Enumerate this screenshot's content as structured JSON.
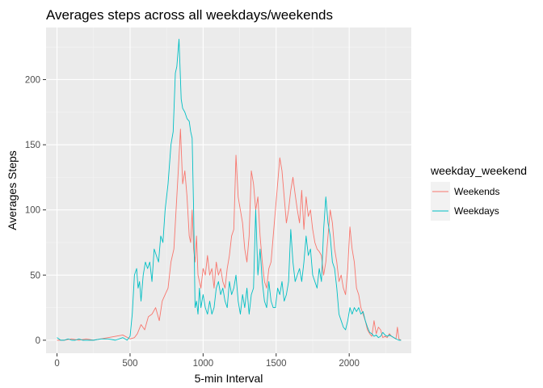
{
  "chart_data": {
    "type": "line",
    "title": "Averages steps across all weekdays/weekends",
    "xlabel": "5-min Interval",
    "ylabel": "Averages Steps",
    "xlim": [
      -75,
      2425
    ],
    "ylim": [
      -10,
      240
    ],
    "x_ticks": [
      0,
      500,
      1000,
      1500,
      2000
    ],
    "y_ticks": [
      0,
      50,
      100,
      150,
      200
    ],
    "grid": true,
    "legend": {
      "title": "weekday_weekend",
      "position": "right",
      "entries": [
        "Weekends",
        "Weekdays"
      ]
    },
    "series": [
      {
        "name": "Weekends",
        "color": "#F8766D",
        "points": [
          [
            0,
            0
          ],
          [
            50,
            0
          ],
          [
            100,
            1
          ],
          [
            150,
            0
          ],
          [
            200,
            1
          ],
          [
            250,
            0
          ],
          [
            300,
            1
          ],
          [
            350,
            2
          ],
          [
            400,
            3
          ],
          [
            450,
            4
          ],
          [
            500,
            1
          ],
          [
            530,
            2
          ],
          [
            550,
            5
          ],
          [
            575,
            12
          ],
          [
            600,
            8
          ],
          [
            625,
            18
          ],
          [
            650,
            20
          ],
          [
            675,
            25
          ],
          [
            700,
            15
          ],
          [
            720,
            30
          ],
          [
            740,
            35
          ],
          [
            760,
            40
          ],
          [
            780,
            60
          ],
          [
            800,
            70
          ],
          [
            815,
            100
          ],
          [
            830,
            130
          ],
          [
            845,
            162
          ],
          [
            860,
            120
          ],
          [
            875,
            130
          ],
          [
            890,
            110
          ],
          [
            905,
            80
          ],
          [
            915,
            75
          ],
          [
            925,
            100
          ],
          [
            935,
            70
          ],
          [
            945,
            60
          ],
          [
            955,
            80
          ],
          [
            965,
            50
          ],
          [
            975,
            45
          ],
          [
            985,
            40
          ],
          [
            1000,
            55
          ],
          [
            1015,
            50
          ],
          [
            1030,
            65
          ],
          [
            1045,
            50
          ],
          [
            1060,
            55
          ],
          [
            1075,
            40
          ],
          [
            1090,
            60
          ],
          [
            1105,
            50
          ],
          [
            1120,
            55
          ],
          [
            1135,
            45
          ],
          [
            1150,
            40
          ],
          [
            1165,
            55
          ],
          [
            1180,
            65
          ],
          [
            1195,
            80
          ],
          [
            1210,
            85
          ],
          [
            1225,
            142
          ],
          [
            1240,
            110
          ],
          [
            1255,
            100
          ],
          [
            1270,
            90
          ],
          [
            1285,
            70
          ],
          [
            1300,
            60
          ],
          [
            1315,
            80
          ],
          [
            1330,
            130
          ],
          [
            1345,
            120
          ],
          [
            1360,
            100
          ],
          [
            1375,
            110
          ],
          [
            1390,
            80
          ],
          [
            1405,
            60
          ],
          [
            1420,
            45
          ],
          [
            1435,
            40
          ],
          [
            1450,
            55
          ],
          [
            1465,
            60
          ],
          [
            1480,
            80
          ],
          [
            1495,
            100
          ],
          [
            1510,
            120
          ],
          [
            1525,
            140
          ],
          [
            1540,
            130
          ],
          [
            1555,
            110
          ],
          [
            1570,
            90
          ],
          [
            1585,
            100
          ],
          [
            1600,
            115
          ],
          [
            1615,
            125
          ],
          [
            1630,
            112
          ],
          [
            1645,
            100
          ],
          [
            1660,
            90
          ],
          [
            1675,
            115
          ],
          [
            1690,
            85
          ],
          [
            1705,
            110
          ],
          [
            1720,
            95
          ],
          [
            1735,
            100
          ],
          [
            1750,
            85
          ],
          [
            1765,
            75
          ],
          [
            1780,
            70
          ],
          [
            1795,
            68
          ],
          [
            1810,
            65
          ],
          [
            1825,
            50
          ],
          [
            1840,
            60
          ],
          [
            1855,
            80
          ],
          [
            1870,
            100
          ],
          [
            1885,
            90
          ],
          [
            1900,
            70
          ],
          [
            1915,
            60
          ],
          [
            1930,
            45
          ],
          [
            1945,
            50
          ],
          [
            1960,
            40
          ],
          [
            1975,
            35
          ],
          [
            1990,
            55
          ],
          [
            2005,
            87
          ],
          [
            2020,
            70
          ],
          [
            2035,
            60
          ],
          [
            2050,
            40
          ],
          [
            2065,
            35
          ],
          [
            2080,
            25
          ],
          [
            2095,
            20
          ],
          [
            2110,
            15
          ],
          [
            2125,
            8
          ],
          [
            2140,
            5
          ],
          [
            2155,
            3
          ],
          [
            2170,
            15
          ],
          [
            2185,
            5
          ],
          [
            2200,
            10
          ],
          [
            2215,
            8
          ],
          [
            2230,
            2
          ],
          [
            2245,
            3
          ],
          [
            2260,
            2
          ],
          [
            2275,
            5
          ],
          [
            2290,
            3
          ],
          [
            2305,
            2
          ],
          [
            2320,
            1
          ],
          [
            2330,
            10
          ],
          [
            2340,
            1
          ],
          [
            2355,
            0
          ]
        ]
      },
      {
        "name": "Weekdays",
        "color": "#00BFC4",
        "points": [
          [
            0,
            2
          ],
          [
            25,
            0
          ],
          [
            50,
            0
          ],
          [
            75,
            1
          ],
          [
            100,
            0
          ],
          [
            125,
            0
          ],
          [
            150,
            1
          ],
          [
            175,
            0
          ],
          [
            200,
            0
          ],
          [
            250,
            0
          ],
          [
            300,
            1
          ],
          [
            350,
            1
          ],
          [
            400,
            0
          ],
          [
            450,
            2
          ],
          [
            480,
            0
          ],
          [
            500,
            3
          ],
          [
            515,
            20
          ],
          [
            530,
            50
          ],
          [
            545,
            55
          ],
          [
            555,
            40
          ],
          [
            565,
            45
          ],
          [
            575,
            30
          ],
          [
            590,
            50
          ],
          [
            605,
            60
          ],
          [
            620,
            55
          ],
          [
            635,
            60
          ],
          [
            650,
            45
          ],
          [
            665,
            70
          ],
          [
            680,
            65
          ],
          [
            695,
            60
          ],
          [
            710,
            80
          ],
          [
            725,
            75
          ],
          [
            740,
            100
          ],
          [
            760,
            120
          ],
          [
            780,
            150
          ],
          [
            795,
            160
          ],
          [
            810,
            205
          ],
          [
            820,
            210
          ],
          [
            835,
            231
          ],
          [
            850,
            185
          ],
          [
            860,
            178
          ],
          [
            875,
            175
          ],
          [
            890,
            170
          ],
          [
            905,
            168
          ],
          [
            915,
            160
          ],
          [
            925,
            155
          ],
          [
            935,
            100
          ],
          [
            945,
            25
          ],
          [
            955,
            30
          ],
          [
            965,
            20
          ],
          [
            975,
            40
          ],
          [
            985,
            25
          ],
          [
            1000,
            35
          ],
          [
            1015,
            25
          ],
          [
            1030,
            20
          ],
          [
            1045,
            30
          ],
          [
            1060,
            20
          ],
          [
            1075,
            25
          ],
          [
            1090,
            40
          ],
          [
            1105,
            45
          ],
          [
            1120,
            35
          ],
          [
            1135,
            40
          ],
          [
            1150,
            30
          ],
          [
            1165,
            25
          ],
          [
            1180,
            45
          ],
          [
            1195,
            35
          ],
          [
            1210,
            40
          ],
          [
            1225,
            50
          ],
          [
            1240,
            30
          ],
          [
            1255,
            20
          ],
          [
            1270,
            35
          ],
          [
            1285,
            25
          ],
          [
            1300,
            40
          ],
          [
            1315,
            20
          ],
          [
            1330,
            35
          ],
          [
            1345,
            40
          ],
          [
            1360,
            100
          ],
          [
            1375,
            50
          ],
          [
            1390,
            70
          ],
          [
            1405,
            45
          ],
          [
            1420,
            30
          ],
          [
            1435,
            25
          ],
          [
            1450,
            45
          ],
          [
            1465,
            30
          ],
          [
            1480,
            25
          ],
          [
            1495,
            25
          ],
          [
            1510,
            40
          ],
          [
            1525,
            35
          ],
          [
            1540,
            45
          ],
          [
            1555,
            30
          ],
          [
            1570,
            35
          ],
          [
            1585,
            45
          ],
          [
            1600,
            85
          ],
          [
            1615,
            60
          ],
          [
            1630,
            45
          ],
          [
            1645,
            50
          ],
          [
            1660,
            55
          ],
          [
            1675,
            45
          ],
          [
            1690,
            60
          ],
          [
            1705,
            80
          ],
          [
            1720,
            65
          ],
          [
            1735,
            70
          ],
          [
            1750,
            50
          ],
          [
            1765,
            45
          ],
          [
            1780,
            40
          ],
          [
            1795,
            55
          ],
          [
            1810,
            45
          ],
          [
            1825,
            85
          ],
          [
            1840,
            110
          ],
          [
            1855,
            90
          ],
          [
            1870,
            80
          ],
          [
            1885,
            60
          ],
          [
            1900,
            55
          ],
          [
            1915,
            40
          ],
          [
            1930,
            20
          ],
          [
            1945,
            15
          ],
          [
            1960,
            10
          ],
          [
            1975,
            8
          ],
          [
            1990,
            15
          ],
          [
            2005,
            25
          ],
          [
            2020,
            20
          ],
          [
            2035,
            25
          ],
          [
            2050,
            22
          ],
          [
            2065,
            25
          ],
          [
            2080,
            20
          ],
          [
            2095,
            22
          ],
          [
            2110,
            15
          ],
          [
            2125,
            10
          ],
          [
            2140,
            6
          ],
          [
            2155,
            5
          ],
          [
            2170,
            3
          ],
          [
            2185,
            4
          ],
          [
            2200,
            2
          ],
          [
            2215,
            3
          ],
          [
            2230,
            6
          ],
          [
            2245,
            4
          ],
          [
            2260,
            3
          ],
          [
            2275,
            4
          ],
          [
            2290,
            3
          ],
          [
            2305,
            2
          ],
          [
            2320,
            1
          ],
          [
            2340,
            0
          ],
          [
            2355,
            0
          ]
        ]
      }
    ]
  }
}
